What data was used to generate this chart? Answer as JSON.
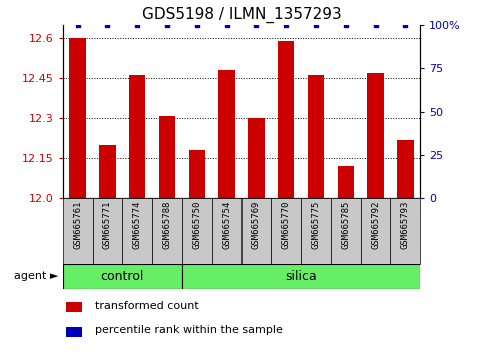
{
  "title": "GDS5198 / ILMN_1357293",
  "samples": [
    "GSM665761",
    "GSM665771",
    "GSM665774",
    "GSM665788",
    "GSM665750",
    "GSM665754",
    "GSM665769",
    "GSM665770",
    "GSM665775",
    "GSM665785",
    "GSM665792",
    "GSM665793"
  ],
  "groups": [
    "control",
    "control",
    "control",
    "control",
    "silica",
    "silica",
    "silica",
    "silica",
    "silica",
    "silica",
    "silica",
    "silica"
  ],
  "transformed_count": [
    12.6,
    12.2,
    12.46,
    12.31,
    12.18,
    12.48,
    12.3,
    12.59,
    12.46,
    12.12,
    12.47,
    12.22
  ],
  "percentile_values": [
    100,
    100,
    100,
    100,
    100,
    100,
    100,
    100,
    100,
    100,
    100,
    100
  ],
  "ymin": 12.0,
  "ymax": 12.65,
  "yticks_left": [
    12.0,
    12.15,
    12.3,
    12.45,
    12.6
  ],
  "yticks_right": [
    0,
    25,
    50,
    75,
    100
  ],
  "bar_color": "#CC0000",
  "dot_color": "#0000BB",
  "sample_label_bg": "#C8C8C8",
  "green_color": "#66EE66",
  "legend_red": "#CC0000",
  "legend_blue": "#0000BB",
  "left_tick_color": "#CC0000",
  "right_tick_color": "#0000BB",
  "agent_label": "agent",
  "ctrl_count": 4,
  "silica_count": 8,
  "bar_width": 0.55,
  "title_fontsize": 11,
  "tick_fontsize": 8,
  "sample_fontsize": 6.5,
  "group_fontsize": 9,
  "legend_fontsize": 8
}
